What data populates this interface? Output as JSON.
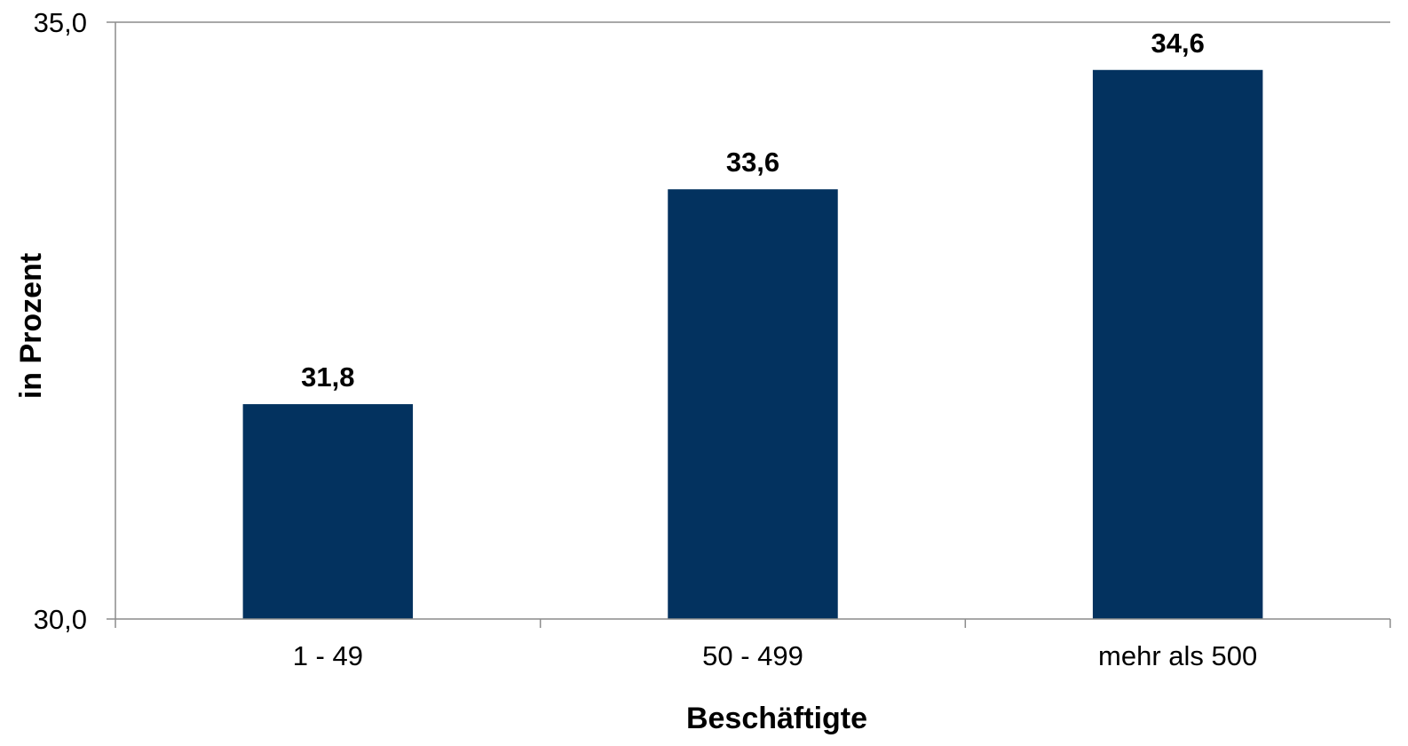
{
  "chart_data": {
    "type": "bar",
    "categories": [
      "1 - 49",
      "50 - 499",
      "mehr als 500"
    ],
    "values": [
      31.8,
      33.6,
      34.6
    ],
    "value_labels": [
      "31,8",
      "33,6",
      "34,6"
    ],
    "title": "",
    "xlabel": "Beschäftigte",
    "ylabel": "in Prozent",
    "ylim": [
      30.0,
      35.0
    ],
    "y_ticks": [
      30.0,
      35.0
    ],
    "y_tick_labels": [
      "30,0",
      "35,0"
    ],
    "grid": false,
    "legend": "none",
    "bar_color": "#03325f",
    "axis_color": "#8c8c8c"
  }
}
